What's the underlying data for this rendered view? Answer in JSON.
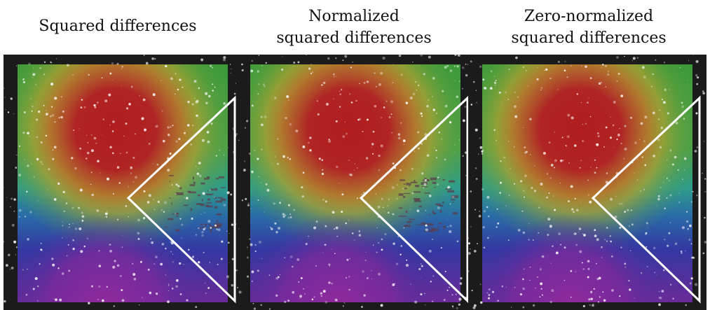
{
  "panels": [
    {
      "title": [
        "Squared differences"
      ]
    },
    {
      "title": [
        "Normalized",
        "squared differences"
      ]
    },
    {
      "title": [
        "Zero-normalized",
        "squared differences"
      ]
    }
  ]
}
